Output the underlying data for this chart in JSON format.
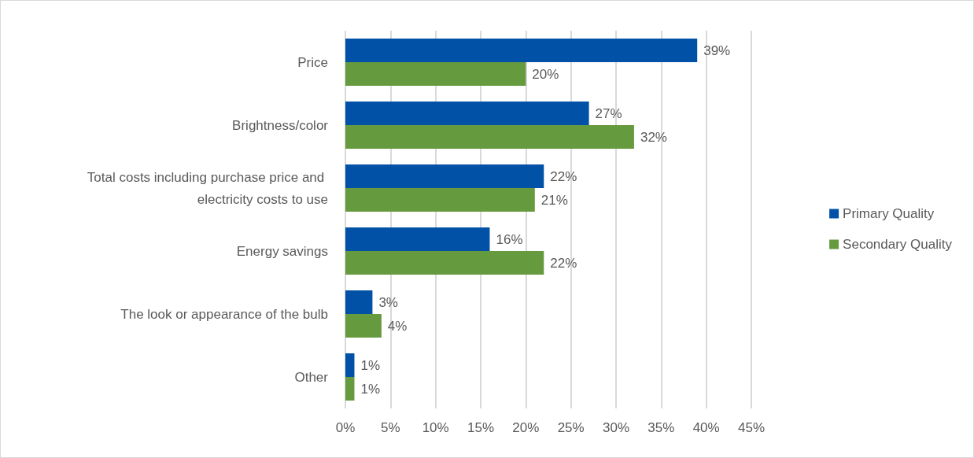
{
  "chart_data": {
    "type": "bar",
    "orientation": "horizontal",
    "categories": [
      "Price",
      "Brightness/color",
      "Total costs including purchase price and electricity costs to use",
      "Energy savings",
      "The look or appearance of the bulb",
      "Other"
    ],
    "series": [
      {
        "name": "Primary Quality",
        "color": "#0152a6",
        "values": [
          39,
          27,
          22,
          16,
          3,
          1
        ],
        "value_labels": [
          "39%",
          "27%",
          "22%",
          "16%",
          "3%",
          "1%"
        ]
      },
      {
        "name": "Secondary Quality",
        "color": "#669a3f",
        "values": [
          20,
          32,
          21,
          22,
          4,
          1
        ],
        "value_labels": [
          "20%",
          "32%",
          "21%",
          "22%",
          "4%",
          "1%"
        ]
      }
    ],
    "xlim": [
      0,
      45
    ],
    "xticks": [
      {
        "value": 0,
        "label": "0%"
      },
      {
        "value": 5,
        "label": "5%"
      },
      {
        "value": 10,
        "label": "10%"
      },
      {
        "value": 15,
        "label": "15%"
      },
      {
        "value": 20,
        "label": "20%"
      },
      {
        "value": 25,
        "label": "25%"
      },
      {
        "value": 30,
        "label": "30%"
      },
      {
        "value": 35,
        "label": "35%"
      },
      {
        "value": 40,
        "label": "40%"
      },
      {
        "value": 45,
        "label": "45%"
      }
    ],
    "grid": "x",
    "legend": "right"
  }
}
